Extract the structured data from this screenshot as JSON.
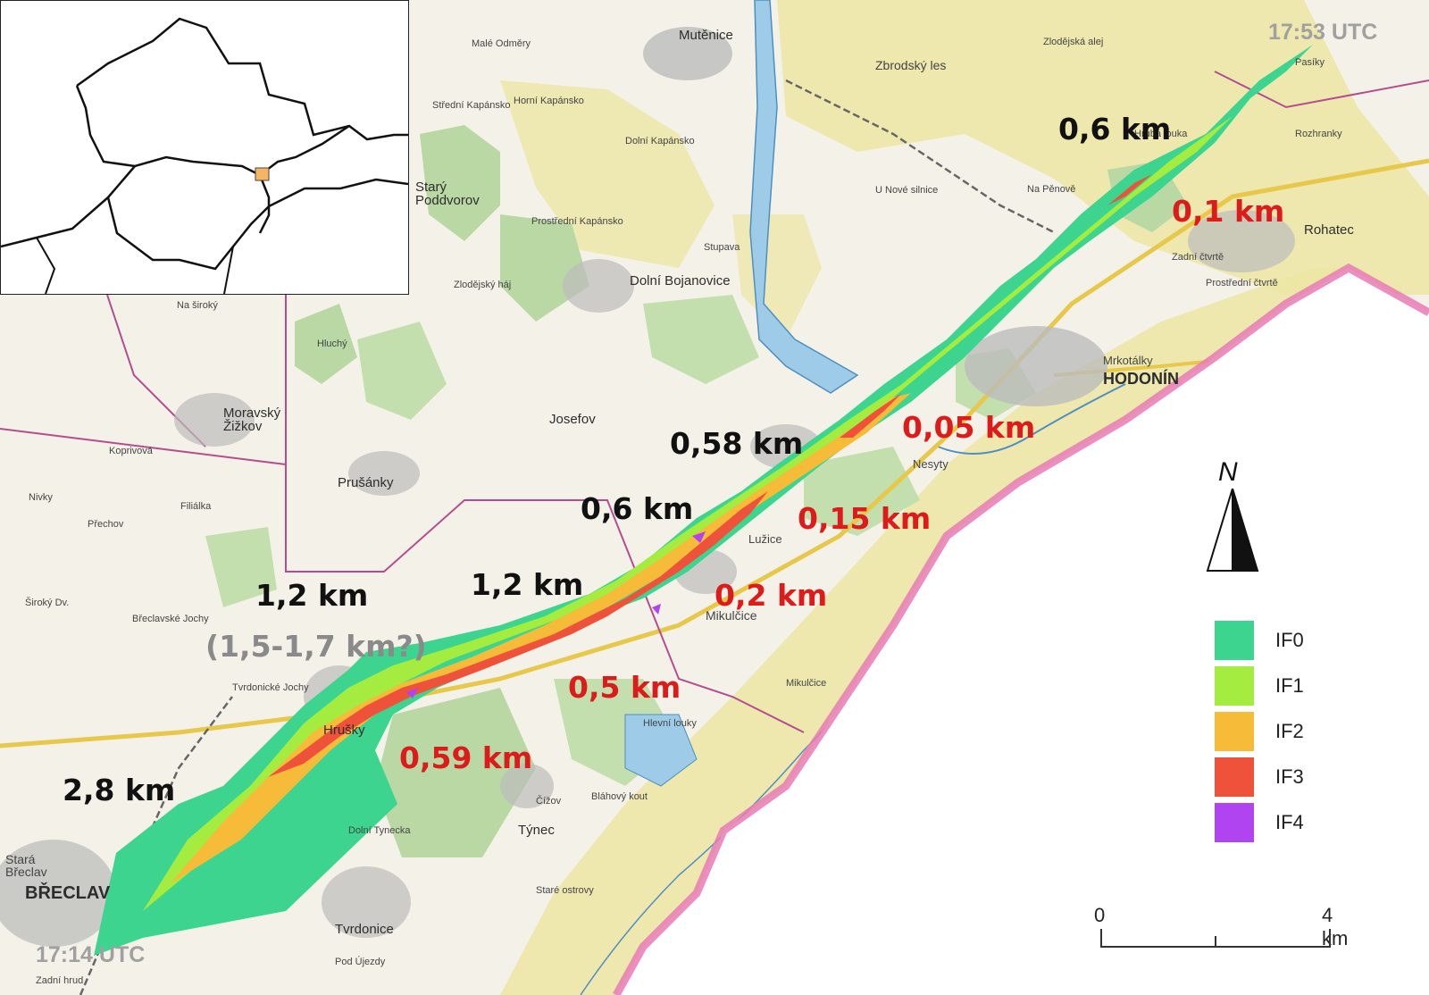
{
  "map": {
    "times": {
      "end": "17:53 UTC",
      "start": "17:14 UTC"
    },
    "width_labels_black": [
      "0,6 km",
      "0,58 km",
      "0,6 km",
      "1,2 km",
      "1,2 km",
      "2,8 km"
    ],
    "width_label_grey": "(1,5-1,7 km?)",
    "width_labels_red": [
      "0,1 km",
      "0,05 km",
      "0,15 km",
      "0,2 km",
      "0,5 km",
      "0,59 km"
    ],
    "places_big": [
      "HODONÍN",
      "BŘECLAV"
    ],
    "places_med": [
      "Mutěnice",
      "Dolní Bojanovice",
      "Starý Poddvorov",
      "Moravský Žižkov",
      "Prušánky",
      "Josefov",
      "Rohatec",
      "Týnec",
      "Tvrdonice",
      "Hrušky",
      "Mikulčice",
      "Nesyty",
      "Lužice",
      "Stará Břeclav"
    ],
    "places_small": [
      "Zbrodský les",
      "Malé Odměry",
      "Zlodějská alej",
      "Hrubá louka",
      "Na Pěnově",
      "Střední Kapánsko",
      "Horní Kapánsko",
      "Dolní Kapánsko",
      "Prostřední Kapánsko",
      "U Nové silnice",
      "Stupava",
      "Zlodějský háj",
      "Na široký",
      "Hluchý",
      "Nivky",
      "Koprivová",
      "Přechov",
      "Filiálka",
      "Široký Dv.",
      "Břeclavské Jochy",
      "Tvrdonické Jochy",
      "Hlevní louky",
      "Bláhový kout",
      "Čížov",
      "Staré ostrovy",
      "Pod Újezdy",
      "Zadní hrud",
      "Mrkotálky",
      "Zadní čtvrtě",
      "Prostřední čtvrtě",
      "Rozhranky",
      "Pasíky",
      "Mikulčice",
      "Dolní Tynecka"
    ],
    "colors": {
      "IF0": "#3cd48e",
      "IF1": "#a4ec40",
      "IF2": "#f7bb3a",
      "IF3": "#ee523a",
      "IF4": "#b044f0",
      "label_red": "#dc1b1b",
      "border_pink": "#e87bb5"
    },
    "legend": [
      {
        "label": "IF0",
        "color": "#3cd48e"
      },
      {
        "label": "IF1",
        "color": "#a4ec40"
      },
      {
        "label": "IF2",
        "color": "#f7bb3a"
      },
      {
        "label": "IF3",
        "color": "#ee523a"
      },
      {
        "label": "IF4",
        "color": "#b044f0"
      }
    ],
    "north_arrow": "N",
    "scale_bar": {
      "start": "0",
      "end": "4 km"
    },
    "inset": {
      "highlight_color": "#f7b463"
    }
  }
}
